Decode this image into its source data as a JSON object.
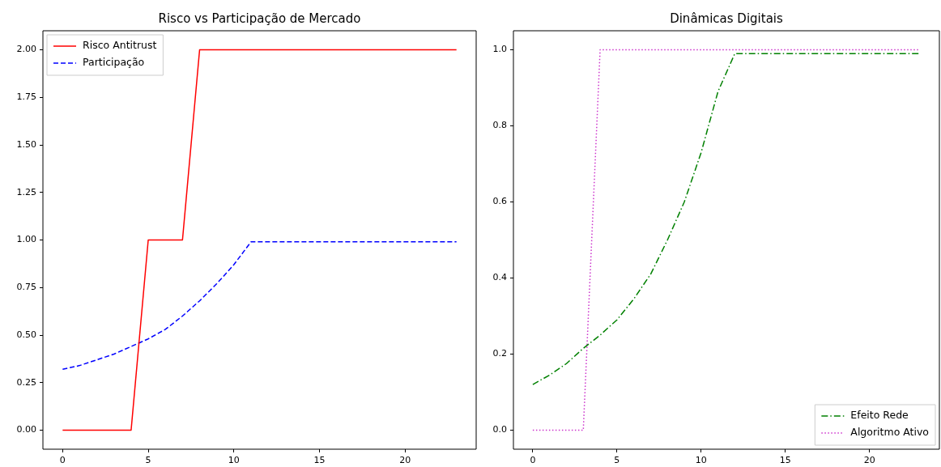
{
  "chart_data": [
    {
      "type": "line",
      "title": "Risco vs Participação de Mercado",
      "x": [
        0,
        1,
        2,
        3,
        4,
        5,
        6,
        7,
        8,
        9,
        10,
        11,
        12,
        13,
        14,
        15,
        16,
        17,
        18,
        19,
        20,
        21,
        22,
        23
      ],
      "series": [
        {
          "name": "Risco Antitrust",
          "color": "#ff0000",
          "line_style": "solid",
          "values": [
            0,
            0,
            0,
            0,
            0,
            1,
            1,
            1,
            2,
            2,
            2,
            2,
            2,
            2,
            2,
            2,
            2,
            2,
            2,
            2,
            2,
            2,
            2,
            2
          ]
        },
        {
          "name": "Participação",
          "color": "#0000ff",
          "line_style": "dashed",
          "values": [
            0.32,
            0.34,
            0.37,
            0.4,
            0.44,
            0.48,
            0.53,
            0.6,
            0.68,
            0.77,
            0.87,
            0.99,
            0.99,
            0.99,
            0.99,
            0.99,
            0.99,
            0.99,
            0.99,
            0.99,
            0.99,
            0.99,
            0.99,
            0.99
          ]
        }
      ],
      "xlim": [
        -1.15,
        24.15
      ],
      "xticks": [
        0,
        5,
        10,
        15,
        20
      ],
      "ylim": [
        -0.1,
        2.1
      ],
      "yticks": [
        {
          "value": 0,
          "label": "0.00"
        },
        {
          "value": 0.25,
          "label": "0.25"
        },
        {
          "value": 0.5,
          "label": "0.50"
        },
        {
          "value": 0.75,
          "label": "0.75"
        },
        {
          "value": 1,
          "label": "1.00"
        },
        {
          "value": 1.25,
          "label": "1.25"
        },
        {
          "value": 1.5,
          "label": "1.50"
        },
        {
          "value": 1.75,
          "label": "1.75"
        },
        {
          "value": 2,
          "label": "2.00"
        }
      ],
      "legend": "top left",
      "marker": "none"
    },
    {
      "type": "line",
      "title": "Dinâmicas Digitais",
      "x": [
        0,
        1,
        2,
        3,
        4,
        5,
        6,
        7,
        8,
        9,
        10,
        11,
        12,
        13,
        14,
        15,
        16,
        17,
        18,
        19,
        20,
        21,
        22,
        23
      ],
      "series": [
        {
          "name": "Efeito Rede",
          "color": "#008000",
          "line_style": "dashdot",
          "values": [
            0.12,
            0.145,
            0.175,
            0.215,
            0.25,
            0.29,
            0.345,
            0.41,
            0.5,
            0.6,
            0.73,
            0.89,
            0.99,
            0.99,
            0.99,
            0.99,
            0.99,
            0.99,
            0.99,
            0.99,
            0.99,
            0.99,
            0.99,
            0.99
          ]
        },
        {
          "name": "Algoritmo Ativo",
          "color": "#cc33cc",
          "line_style": "dotted",
          "values": [
            0,
            0,
            0,
            0,
            1,
            1,
            1,
            1,
            1,
            1,
            1,
            1,
            1,
            1,
            1,
            1,
            1,
            1,
            1,
            1,
            1,
            1,
            1,
            1
          ]
        }
      ],
      "xlim": [
        -1.15,
        24.15
      ],
      "xticks": [
        0,
        5,
        10,
        15,
        20
      ],
      "ylim": [
        -0.05,
        1.05
      ],
      "yticks": [
        {
          "value": 0,
          "label": "0.0"
        },
        {
          "value": 0.2,
          "label": "0.2"
        },
        {
          "value": 0.4,
          "label": "0.4"
        },
        {
          "value": 0.6,
          "label": "0.6"
        },
        {
          "value": 0.8,
          "label": "0.8"
        },
        {
          "value": 1,
          "label": "1.0"
        }
      ],
      "legend": "bottom right",
      "marker": "none"
    }
  ]
}
